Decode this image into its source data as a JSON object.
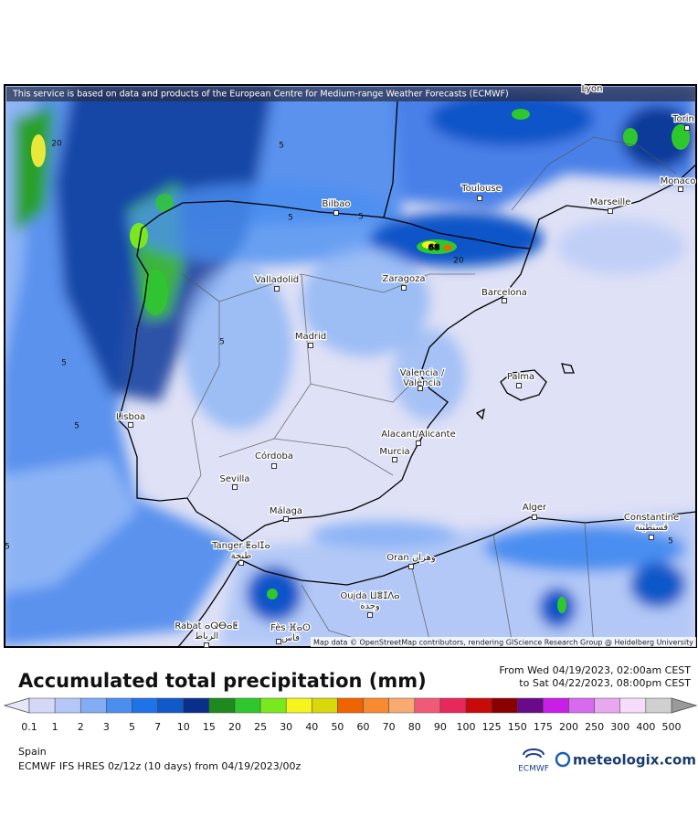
{
  "map": {
    "notice": "This service is based on data and products of the European Centre for Medium-range Weather Forecasts (ECMWF)",
    "attribution": "Map data © OpenStreetMap contributors, rendering GIScience Research Group @ Heidelberg University",
    "cities": [
      {
        "name": "Lyon"
      },
      {
        "name": "Torin"
      },
      {
        "name": "Bilbao"
      },
      {
        "name": "Toulouse"
      },
      {
        "name": "Marseille"
      },
      {
        "name": "Monaco"
      },
      {
        "name": "Valladolid"
      },
      {
        "name": "Zaragoza"
      },
      {
        "name": "Barcelona"
      },
      {
        "name": "Madrid"
      },
      {
        "name": "Valencia /",
        "sub": "València"
      },
      {
        "name": "Palma"
      },
      {
        "name": "Lisboa"
      },
      {
        "name": "Alacant/Alicante"
      },
      {
        "name": "Murcia"
      },
      {
        "name": "Córdoba"
      },
      {
        "name": "Sevilla"
      },
      {
        "name": "Málaga"
      },
      {
        "name": "Alger"
      },
      {
        "name": "Constantine",
        "sub": "قسنطينة"
      },
      {
        "name": "Tanger ⵟⴰⵏⵊⴰ",
        "sub": "طنجة"
      },
      {
        "name": "Oran وهران"
      },
      {
        "name": "Oujda ⵡⴻⵊⴷⴰ",
        "sub": "وجدة"
      },
      {
        "name": "Rabat ⴰⵕⴱⴰⵟ",
        "sub": "الرباط"
      },
      {
        "name": "Fès ⴼⴰⵙ",
        "sub": "فاس"
      }
    ],
    "contour_labels": [
      20,
      5,
      5,
      5,
      20,
      68,
      5,
      5,
      5,
      5,
      5
    ]
  },
  "title": "Accumulated total precipitation (mm)",
  "period": {
    "from": "From Wed 04/19/2023, 02:00am CEST",
    "to": "to Sat 04/22/2023, 08:00pm CEST"
  },
  "legend": {
    "ticks": [
      0.1,
      1,
      2,
      3,
      5,
      7,
      10,
      15,
      20,
      25,
      30,
      40,
      50,
      60,
      70,
      80,
      90,
      100,
      125,
      150,
      175,
      200,
      250,
      300,
      400,
      500
    ],
    "colors": [
      "#e6e6f8",
      "#d4d8f6",
      "#b4c8f8",
      "#82acf4",
      "#4a8ef0",
      "#1f72e8",
      "#1158c8",
      "#0a2f8a",
      "#1e8a1e",
      "#2ec82e",
      "#7ae81e",
      "#f5f51e",
      "#d8d80a",
      "#f06400",
      "#f88a30",
      "#f8aa70",
      "#f05a78",
      "#e8285a",
      "#c80a0a",
      "#8a0000",
      "#6a0a8a",
      "#c81ee8",
      "#d86af0",
      "#e8a8f0",
      "#f5dcf8",
      "#d0d0d0",
      "#9a9a9a"
    ]
  },
  "footer": {
    "region": "Spain",
    "model": "ECMWF IFS HRES 0z/12z (10 days)  from  04/19/2023/00z",
    "ecmwf": "ECMWF",
    "brand": "meteologix.com"
  }
}
